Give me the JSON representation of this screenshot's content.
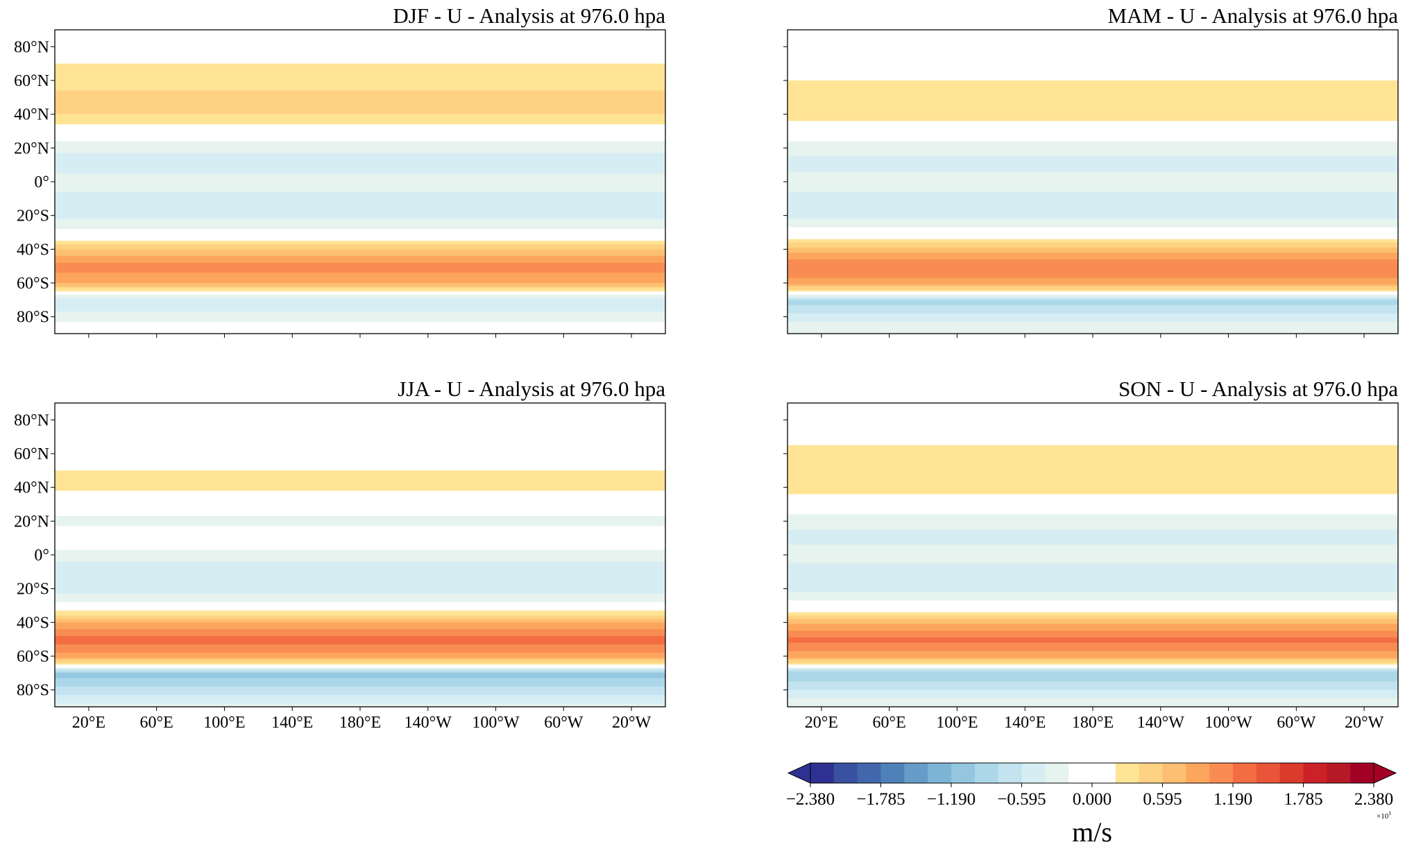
{
  "chart_data": {
    "type": "heatmap",
    "panels": [
      {
        "title": "DJF - U - Analysis at 976.0 hpa",
        "zonal_mean_u": {
          "lat": [
            90,
            80,
            70,
            60,
            50,
            40,
            30,
            20,
            10,
            0,
            -10,
            -20,
            -30,
            -40,
            -50,
            -60,
            -65,
            -70,
            -80,
            -90
          ],
          "values": [
            0.05,
            0.0,
            0.2,
            0.3,
            0.45,
            0.4,
            0.05,
            -0.35,
            -0.5,
            -0.3,
            -0.45,
            -0.45,
            -0.15,
            0.6,
            1.1,
            0.8,
            0.2,
            -0.6,
            -0.3,
            0.05
          ]
        }
      },
      {
        "title": "MAM - U - Analysis at 976.0 hpa",
        "zonal_mean_u": {
          "lat": [
            90,
            80,
            70,
            60,
            50,
            40,
            30,
            20,
            10,
            0,
            -10,
            -20,
            -30,
            -40,
            -50,
            -60,
            -65,
            -70,
            -80,
            -90
          ],
          "values": [
            0.05,
            0.0,
            0.1,
            0.2,
            0.35,
            0.3,
            0.05,
            -0.35,
            -0.45,
            -0.3,
            -0.45,
            -0.45,
            -0.1,
            0.7,
            1.2,
            0.9,
            0.2,
            -0.9,
            -0.5,
            -0.2
          ]
        }
      },
      {
        "title": "JJA - U - Analysis at 976.0 hpa",
        "zonal_mean_u": {
          "lat": [
            90,
            80,
            70,
            60,
            50,
            40,
            30,
            20,
            10,
            0,
            -10,
            -20,
            -30,
            -40,
            -50,
            -60,
            -65,
            -70,
            -80,
            -90
          ],
          "values": [
            0.05,
            0.0,
            0.05,
            0.1,
            0.2,
            0.25,
            0.0,
            -0.3,
            0.1,
            -0.3,
            -0.55,
            -0.5,
            -0.1,
            0.8,
            1.3,
            0.9,
            0.2,
            -1.1,
            -0.7,
            -0.3
          ]
        }
      },
      {
        "title": "SON - U - Analysis at 976.0 hpa",
        "zonal_mean_u": {
          "lat": [
            90,
            80,
            70,
            60,
            50,
            40,
            30,
            20,
            10,
            0,
            -10,
            -20,
            -30,
            -40,
            -50,
            -60,
            -65,
            -70,
            -80,
            -90
          ],
          "values": [
            0.05,
            0.0,
            0.15,
            0.25,
            0.35,
            0.3,
            0.05,
            -0.35,
            -0.45,
            -0.3,
            -0.5,
            -0.45,
            -0.1,
            0.75,
            1.25,
            0.9,
            0.2,
            -1.0,
            -0.6,
            -0.2
          ]
        }
      }
    ],
    "lat_ticks": [
      "80°N",
      "60°N",
      "40°N",
      "20°N",
      "0°",
      "20°S",
      "40°S",
      "60°S",
      "80°S"
    ],
    "lat_tick_values": [
      80,
      60,
      40,
      20,
      0,
      -20,
      -40,
      -60,
      -80
    ],
    "lon_ticks": [
      "20°E",
      "60°E",
      "100°E",
      "140°E",
      "180°E",
      "140°W",
      "100°W",
      "60°W",
      "20°W"
    ],
    "lon_tick_values": [
      20,
      60,
      100,
      140,
      180,
      220,
      260,
      300,
      340
    ],
    "xlim": [
      0,
      360
    ],
    "ylim": [
      -90,
      90
    ],
    "colorbar": {
      "label": "m/s",
      "multiplier": "×10",
      "multiplier_exp": "1",
      "range": [
        -2.38,
        2.38
      ],
      "extend": "both",
      "tick_labels": [
        "−2.380",
        "−1.785",
        "−1.190",
        "−0.595",
        "0.000",
        "0.595",
        "1.190",
        "1.785",
        "2.380"
      ],
      "tick_values": [
        -2.38,
        -1.785,
        -1.19,
        -0.595,
        0,
        0.595,
        1.19,
        1.785,
        2.38
      ],
      "colors": [
        "#2e3192",
        "#3a50a0",
        "#4267ac",
        "#4f81b9",
        "#669cc8",
        "#7cb4d5",
        "#94c6e0",
        "#abd7e8",
        "#c2e3ef",
        "#d6edf4",
        "#e6f3ee",
        "#ffffff",
        "#ffffff",
        "#ffe495",
        "#fed283",
        "#fdbf71",
        "#fca55d",
        "#f98c52",
        "#f46d43",
        "#e95538",
        "#db3b2c",
        "#cb2127",
        "#b51926",
        "#a30026"
      ],
      "under_color": "#2e3192",
      "over_color": "#a30026"
    }
  }
}
